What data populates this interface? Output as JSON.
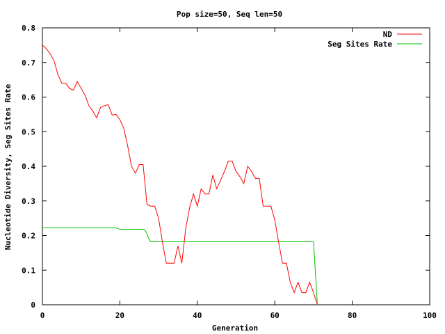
{
  "chart_data": {
    "type": "line",
    "title": "Pop size=50, Seq len=50",
    "xlabel": "Generation",
    "ylabel": "Nucleotide Diversity, Seg Sites Rate",
    "xlim": [
      0,
      100
    ],
    "ylim": [
      0,
      0.8
    ],
    "xticks": [
      "0",
      "20",
      "40",
      "60",
      "80",
      "100"
    ],
    "yticks": [
      "0",
      "0.1",
      "0.2",
      "0.3",
      "0.4",
      "0.5",
      "0.6",
      "0.7",
      "0.8"
    ],
    "legend_position": "top-right",
    "grid": false,
    "series": [
      {
        "name": "ND",
        "color": "#ff0000",
        "x": [
          0,
          1,
          2,
          3,
          4,
          5,
          6,
          7,
          8,
          9,
          10,
          11,
          12,
          13,
          14,
          15,
          16,
          17,
          18,
          19,
          20,
          21,
          22,
          23,
          24,
          25,
          26,
          27,
          28,
          29,
          30,
          31,
          32,
          33,
          34,
          35,
          36,
          37,
          38,
          39,
          40,
          41,
          42,
          43,
          44,
          45,
          46,
          47,
          48,
          49,
          50,
          51,
          52,
          53,
          54,
          55,
          56,
          57,
          58,
          59,
          60,
          61,
          62,
          63,
          64,
          65,
          66,
          67,
          68,
          69,
          70,
          71
        ],
        "values": [
          0.75,
          0.74,
          0.725,
          0.705,
          0.665,
          0.64,
          0.64,
          0.625,
          0.62,
          0.645,
          0.625,
          0.605,
          0.575,
          0.56,
          0.54,
          0.57,
          0.575,
          0.578,
          0.548,
          0.55,
          0.535,
          0.51,
          0.46,
          0.4,
          0.38,
          0.405,
          0.405,
          0.29,
          0.285,
          0.285,
          0.25,
          0.18,
          0.12,
          0.12,
          0.12,
          0.17,
          0.12,
          0.22,
          0.28,
          0.32,
          0.285,
          0.335,
          0.32,
          0.32,
          0.375,
          0.335,
          0.36,
          0.385,
          0.415,
          0.415,
          0.385,
          0.37,
          0.35,
          0.4,
          0.385,
          0.365,
          0.365,
          0.285,
          0.285,
          0.285,
          0.245,
          0.18,
          0.12,
          0.12,
          0.065,
          0.035,
          0.065,
          0.035,
          0.035,
          0.065,
          0.035,
          0.0
        ]
      },
      {
        "name": "Seg Sites Rate",
        "color": "#00c000",
        "x": [
          0,
          19,
          20,
          26,
          26.5,
          27,
          27.5,
          28,
          70,
          71
        ],
        "values": [
          0.222,
          0.222,
          0.218,
          0.218,
          0.215,
          0.205,
          0.19,
          0.182,
          0.182,
          0.0
        ]
      }
    ]
  }
}
